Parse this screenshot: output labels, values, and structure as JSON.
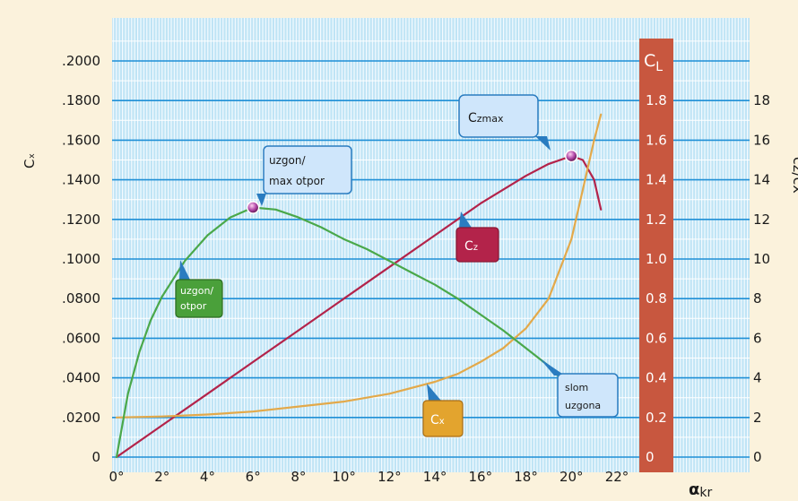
{
  "chart_data": {
    "type": "line",
    "x_ticks": [
      "0°",
      "2°",
      "4°",
      "6°",
      "8°",
      "10°",
      "12°",
      "14°",
      "16°",
      "18°",
      "20°",
      "22°"
    ],
    "xlabel_main": "α",
    "xlabel_sub": "kr",
    "ylabel_left": "Cₓ",
    "ylabel_right": "cz/cx",
    "cl_label": "C",
    "cl_label_sub": "L",
    "left_ticks": [
      "0",
      ".0200",
      ".0400",
      ".0600",
      ".0800",
      ".1000",
      ".1200",
      ".1400",
      ".1600",
      ".1800",
      ".2000"
    ],
    "right_ticks": [
      "0",
      "2",
      "4",
      "6",
      "8",
      "10",
      "12",
      "14",
      "16",
      "18"
    ],
    "cl_ticks": [
      "0",
      "0.2",
      "0.4",
      "0.6",
      "0.8",
      "1.0",
      "1.2",
      "1.4",
      "1.6",
      "1.8"
    ],
    "xlim": [
      0,
      22
    ],
    "ylim_left": [
      0,
      0.2
    ],
    "ylim_right": [
      0,
      20
    ],
    "grid": true,
    "series": [
      {
        "name": "Cz",
        "axis": "cl",
        "color": "#b3234a",
        "x": [
          0,
          2,
          4,
          6,
          8,
          10,
          12,
          14,
          16,
          18,
          19,
          20,
          20.5,
          21,
          21.3
        ],
        "y": [
          0,
          0.16,
          0.32,
          0.48,
          0.64,
          0.8,
          0.96,
          1.12,
          1.28,
          1.42,
          1.48,
          1.52,
          1.5,
          1.4,
          1.25
        ]
      },
      {
        "name": "Cx",
        "axis": "left",
        "color": "#e3a94a",
        "x": [
          0,
          2,
          4,
          6,
          8,
          10,
          12,
          14,
          15,
          16,
          17,
          18,
          19,
          20,
          20.5,
          21,
          21.3
        ],
        "y": [
          0.02,
          0.0205,
          0.0215,
          0.023,
          0.0255,
          0.028,
          0.032,
          0.038,
          0.042,
          0.048,
          0.055,
          0.065,
          0.08,
          0.11,
          0.135,
          0.16,
          0.173
        ]
      },
      {
        "name": "cz/cx",
        "axis": "right",
        "color": "#4aa84a",
        "x": [
          0,
          0.5,
          1,
          1.5,
          2,
          3,
          4,
          5,
          6,
          7,
          8,
          9,
          10,
          11,
          12,
          13,
          14,
          15,
          16,
          17,
          18,
          19,
          20,
          21
        ],
        "y": [
          0,
          3.2,
          5.3,
          6.9,
          8.1,
          9.9,
          11.2,
          12.1,
          12.6,
          12.5,
          12.1,
          11.6,
          11.0,
          10.5,
          9.9,
          9.3,
          8.7,
          8.0,
          7.2,
          6.4,
          5.5,
          4.6,
          3.4,
          2.2
        ]
      }
    ],
    "markers": [
      {
        "label": "uzgon/max otpor",
        "x": 6,
        "y": 12.6,
        "axis": "right"
      },
      {
        "label": "Czmax",
        "x": 20,
        "y": 1.52,
        "axis": "cl"
      }
    ],
    "annotations": {
      "uzgon_max_otpor": [
        "uzgon/",
        "max otpor"
      ],
      "czmax": {
        "main": "C",
        "sub": "zmax"
      },
      "cz_tag": {
        "main": "C",
        "sub": "z"
      },
      "cx_tag": {
        "main": "C",
        "sub": "x"
      },
      "uzgon_otpor": [
        "uzgon/",
        "otpor"
      ],
      "slom_uzgona": [
        "slom",
        "uzgona"
      ]
    },
    "colors": {
      "plot_bg": "#bfe4f5",
      "grid_minor": "#ffffff",
      "grid_major": "#1f8fd6",
      "cl_strip": "#c8573f",
      "page_bg": "#fbf2dc"
    }
  }
}
